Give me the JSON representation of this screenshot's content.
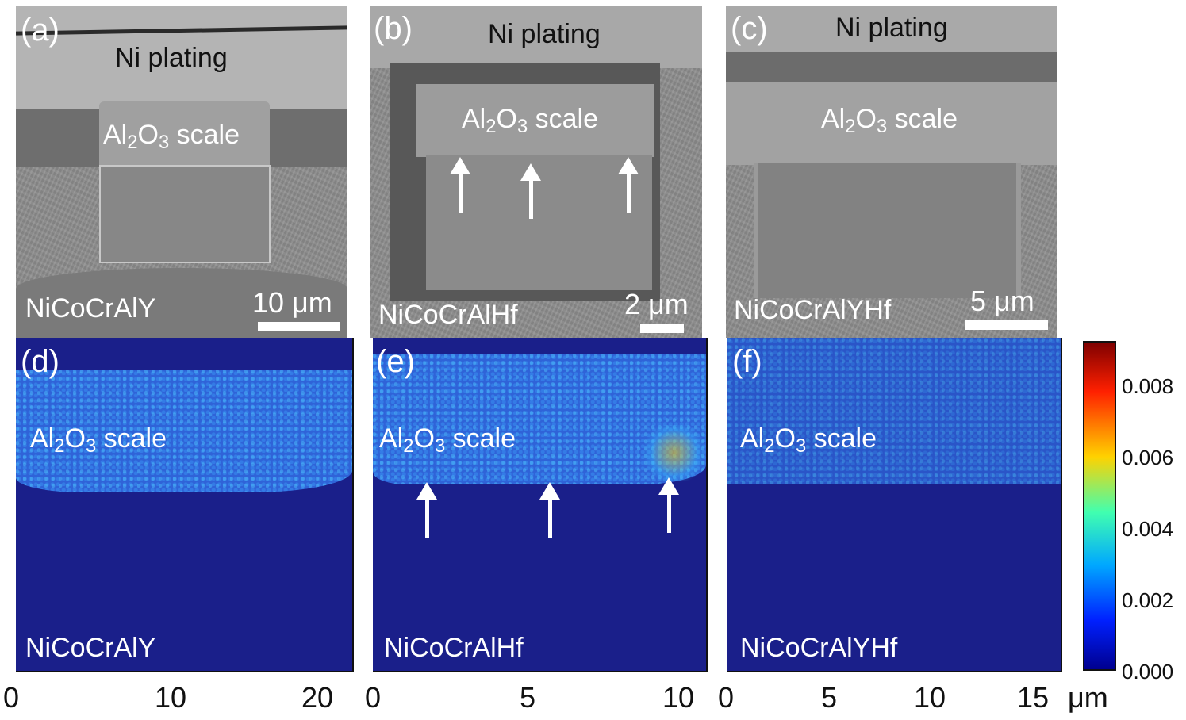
{
  "panels_top": [
    {
      "letter": "(a)",
      "ni": "Ni plating",
      "al": "Al",
      "al_sub1": "2",
      "o": "O",
      "al_sub2": "3",
      "scale_word": " scale",
      "sample": "NiCoCrAlY",
      "scalebar": "10 μm"
    },
    {
      "letter": "(b)",
      "ni": "Ni plating",
      "al": "Al",
      "al_sub1": "2",
      "o": "O",
      "al_sub2": "3",
      "scale_word": " scale",
      "sample": "NiCoCrAlHf",
      "scalebar": "2 μm"
    },
    {
      "letter": "(c)",
      "ni": "Ni plating",
      "al": "Al",
      "al_sub1": "2",
      "o": "O",
      "al_sub2": "3",
      "scale_word": " scale",
      "sample": "NiCoCrAlYHf",
      "scalebar": "5 μm"
    }
  ],
  "panels_bottom": [
    {
      "letter": "(d)",
      "al": "Al",
      "al_sub1": "2",
      "o": "O",
      "al_sub2": "3",
      "scale_word": " scale",
      "sample": "NiCoCrAlY",
      "ticks": [
        "0",
        "10",
        "20"
      ]
    },
    {
      "letter": "(e)",
      "al": "Al",
      "al_sub1": "2",
      "o": "O",
      "al_sub2": "3",
      "scale_word": " scale",
      "sample": "NiCoCrAlHf",
      "ticks": [
        "0",
        "5",
        "10"
      ]
    },
    {
      "letter": "(f)",
      "al": "Al",
      "al_sub1": "2",
      "o": "O",
      "al_sub2": "3",
      "scale_word": " scale",
      "sample": "NiCoCrAlYHf",
      "ticks": [
        "0",
        "5",
        "10",
        "15"
      ]
    }
  ],
  "x_unit": "μm",
  "colorbar": {
    "ticks": [
      "0.008",
      "0.006",
      "0.004",
      "0.002",
      "0.000"
    ],
    "colors": [
      "#7f0000",
      "#ff2000",
      "#ffd200",
      "#40ffb0",
      "#00a8ff",
      "#0020ff",
      "#00008f"
    ]
  }
}
